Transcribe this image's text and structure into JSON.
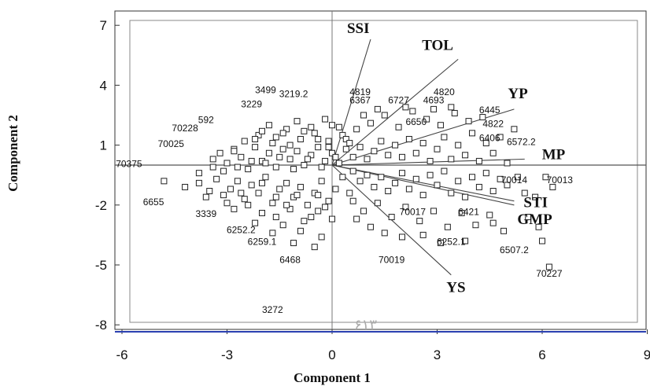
{
  "chart_data": {
    "type": "scatter",
    "title": "",
    "xlabel": "Component 1",
    "ylabel": "Component 2",
    "xlim": [
      -6,
      9.5
    ],
    "ylim": [
      -8.3,
      7
    ],
    "xticks": [
      "-6",
      "-3",
      "0",
      "3",
      "6",
      "9"
    ],
    "yticks": [
      "7",
      "4",
      "1",
      "-2",
      "-5",
      "-8"
    ],
    "grid": false,
    "legend": "none",
    "vectors": [
      {
        "name": "SSI",
        "x": 1.1,
        "y": 6.3
      },
      {
        "name": "TOL",
        "x": 3.6,
        "y": 5.3
      },
      {
        "name": "YP",
        "x": 5.2,
        "y": 2.8
      },
      {
        "name": "MP",
        "x": 5.5,
        "y": 0.3
      },
      {
        "name": "STI",
        "x": 5.2,
        "y": -1.8
      },
      {
        "name": "GMP",
        "x": 5.2,
        "y": -2.0
      },
      {
        "name": "YS",
        "x": 3.4,
        "y": -5.5
      }
    ],
    "labeled_points": [
      {
        "label": "3499",
        "x": -1.9,
        "y": 3.6
      },
      {
        "label": "3219.2",
        "x": -1.1,
        "y": 3.4
      },
      {
        "label": "3229",
        "x": -2.3,
        "y": 2.9
      },
      {
        "label": "592",
        "x": -3.6,
        "y": 2.1
      },
      {
        "label": "70228",
        "x": -4.2,
        "y": 1.7
      },
      {
        "label": "70025",
        "x": -4.6,
        "y": 0.9
      },
      {
        "label": "70375",
        "x": -5.8,
        "y": -0.1
      },
      {
        "label": "6655",
        "x": -5.1,
        "y": -2.0
      },
      {
        "label": "3339",
        "x": -3.6,
        "y": -2.6
      },
      {
        "label": "6252.2",
        "x": -2.6,
        "y": -3.4
      },
      {
        "label": "6259.1",
        "x": -2.0,
        "y": -4.0
      },
      {
        "label": "6468",
        "x": -1.2,
        "y": -4.9
      },
      {
        "label": "3272",
        "x": -1.7,
        "y": -7.4
      },
      {
        "label": "4819",
        "x": 0.8,
        "y": 3.5
      },
      {
        "label": "6367",
        "x": 0.8,
        "y": 3.1
      },
      {
        "label": "6727",
        "x": 1.9,
        "y": 3.1
      },
      {
        "label": "4820",
        "x": 3.2,
        "y": 3.5
      },
      {
        "label": "4693",
        "x": 2.9,
        "y": 3.1
      },
      {
        "label": "6650",
        "x": 2.4,
        "y": 2.0
      },
      {
        "label": "6445",
        "x": 4.5,
        "y": 2.6
      },
      {
        "label": "4822",
        "x": 4.6,
        "y": 1.9
      },
      {
        "label": "6406",
        "x": 4.5,
        "y": 1.2
      },
      {
        "label": "6572.2",
        "x": 5.4,
        "y": 1.0
      },
      {
        "label": "70014",
        "x": 5.2,
        "y": -0.9
      },
      {
        "label": "70013",
        "x": 6.5,
        "y": -0.9
      },
      {
        "label": "70017",
        "x": 2.3,
        "y": -2.5
      },
      {
        "label": "6421",
        "x": 3.9,
        "y": -2.5
      },
      {
        "label": "6252.1",
        "x": 3.4,
        "y": -4.0
      },
      {
        "label": "6507.2",
        "x": 5.2,
        "y": -4.4
      },
      {
        "label": "70019",
        "x": 1.7,
        "y": -4.9
      },
      {
        "label": "70227",
        "x": 6.2,
        "y": -5.6
      }
    ],
    "points": [
      [
        -4.8,
        -0.8
      ],
      [
        -4.2,
        -1.1
      ],
      [
        -3.8,
        -0.9
      ],
      [
        -3.5,
        -1.3
      ],
      [
        -3.3,
        -0.7
      ],
      [
        -3.1,
        -1.5
      ],
      [
        -2.9,
        -1.2
      ],
      [
        -2.7,
        -0.8
      ],
      [
        -2.5,
        -1.7
      ],
      [
        -2.3,
        -1.0
      ],
      [
        -2.1,
        -1.4
      ],
      [
        -1.9,
        -0.6
      ],
      [
        -1.7,
        -1.9
      ],
      [
        -1.5,
        -1.2
      ],
      [
        -1.3,
        -0.9
      ],
      [
        -1.1,
        -1.6
      ],
      [
        -0.9,
        -1.1
      ],
      [
        -0.7,
        -2.0
      ],
      [
        -0.5,
        -1.4
      ],
      [
        -0.3,
        -0.8
      ],
      [
        -0.1,
        -1.8
      ],
      [
        0.1,
        -1.2
      ],
      [
        0.3,
        -0.6
      ],
      [
        -3.4,
        0.3
      ],
      [
        -3.2,
        0.6
      ],
      [
        -3.0,
        0.1
      ],
      [
        -2.8,
        0.8
      ],
      [
        -2.6,
        0.4
      ],
      [
        -2.4,
        -0.2
      ],
      [
        -2.2,
        0.9
      ],
      [
        -2.0,
        0.2
      ],
      [
        -1.8,
        0.6
      ],
      [
        -1.6,
        -0.1
      ],
      [
        -1.4,
        0.8
      ],
      [
        -1.2,
        0.3
      ],
      [
        -1.0,
        0.7
      ],
      [
        -0.8,
        0.0
      ],
      [
        -0.6,
        0.5
      ],
      [
        -0.4,
        0.9
      ],
      [
        -0.2,
        0.2
      ],
      [
        0.0,
        0.6
      ],
      [
        0.2,
        0.1
      ],
      [
        0.4,
        0.8
      ],
      [
        -3.1,
        -0.3
      ],
      [
        -2.7,
        -0.1
      ],
      [
        -2.3,
        0.2
      ],
      [
        -1.9,
        0.1
      ],
      [
        -1.5,
        0.4
      ],
      [
        -1.1,
        -0.2
      ],
      [
        -0.7,
        0.3
      ],
      [
        -0.3,
        -0.1
      ],
      [
        0.1,
        0.4
      ],
      [
        -2.5,
        1.2
      ],
      [
        -2.1,
        1.5
      ],
      [
        -1.7,
        1.1
      ],
      [
        -1.3,
        1.8
      ],
      [
        -0.9,
        1.3
      ],
      [
        -0.5,
        1.6
      ],
      [
        -0.1,
        1.2
      ],
      [
        0.3,
        1.5
      ],
      [
        -1.8,
        2.0
      ],
      [
        -1.4,
        1.6
      ],
      [
        -1.0,
        2.2
      ],
      [
        -0.6,
        1.9
      ],
      [
        -0.2,
        2.3
      ],
      [
        0.2,
        1.9
      ],
      [
        0.4,
        1.3
      ],
      [
        -2.0,
        -2.4
      ],
      [
        -1.6,
        -2.6
      ],
      [
        -1.2,
        -2.2
      ],
      [
        -0.8,
        -2.8
      ],
      [
        -0.4,
        -2.3
      ],
      [
        0.0,
        -2.7
      ],
      [
        -1.4,
        -3.0
      ],
      [
        -0.9,
        -3.3
      ],
      [
        -0.3,
        -3.6
      ],
      [
        -2.2,
        -2.9
      ],
      [
        -1.7,
        -3.4
      ],
      [
        -1.1,
        -3.9
      ],
      [
        -0.5,
        -4.1
      ],
      [
        -2.8,
        -2.2
      ],
      [
        -2.4,
        -2.0
      ],
      [
        0.6,
        -0.3
      ],
      [
        0.8,
        -0.8
      ],
      [
        1.0,
        -0.5
      ],
      [
        1.2,
        -1.1
      ],
      [
        1.4,
        -0.6
      ],
      [
        1.6,
        -1.3
      ],
      [
        1.8,
        -0.9
      ],
      [
        2.0,
        -0.4
      ],
      [
        2.2,
        -1.2
      ],
      [
        2.4,
        -0.7
      ],
      [
        2.6,
        -1.5
      ],
      [
        2.8,
        -0.5
      ],
      [
        3.0,
        -1.0
      ],
      [
        3.2,
        -0.3
      ],
      [
        3.4,
        -1.4
      ],
      [
        3.6,
        -0.8
      ],
      [
        3.8,
        -1.6
      ],
      [
        4.0,
        -0.6
      ],
      [
        4.2,
        -1.1
      ],
      [
        4.4,
        -0.4
      ],
      [
        4.6,
        -1.3
      ],
      [
        4.8,
        -0.7
      ],
      [
        5.0,
        -1.0
      ],
      [
        0.6,
        0.4
      ],
      [
        0.8,
        0.9
      ],
      [
        1.0,
        0.3
      ],
      [
        1.2,
        0.7
      ],
      [
        1.4,
        1.2
      ],
      [
        1.6,
        0.5
      ],
      [
        1.8,
        1.0
      ],
      [
        2.0,
        0.4
      ],
      [
        2.2,
        1.3
      ],
      [
        2.4,
        0.6
      ],
      [
        2.6,
        1.1
      ],
      [
        2.8,
        0.2
      ],
      [
        3.0,
        0.8
      ],
      [
        3.2,
        1.4
      ],
      [
        3.4,
        0.3
      ],
      [
        3.6,
        1.0
      ],
      [
        3.8,
        0.5
      ],
      [
        4.0,
        1.6
      ],
      [
        4.2,
        0.2
      ],
      [
        4.4,
        1.1
      ],
      [
        4.6,
        0.6
      ],
      [
        4.8,
        1.4
      ],
      [
        5.0,
        0.1
      ],
      [
        5.2,
        1.8
      ],
      [
        0.7,
        1.8
      ],
      [
        1.1,
        2.1
      ],
      [
        1.5,
        2.5
      ],
      [
        1.9,
        1.9
      ],
      [
        2.3,
        2.7
      ],
      [
        2.7,
        2.3
      ],
      [
        3.1,
        2.0
      ],
      [
        3.5,
        2.6
      ],
      [
        3.9,
        2.2
      ],
      [
        1.3,
        2.8
      ],
      [
        2.1,
        2.9
      ],
      [
        2.9,
        2.8
      ],
      [
        3.4,
        2.9
      ],
      [
        4.3,
        2.4
      ],
      [
        0.9,
        2.5
      ],
      [
        0.6,
        -1.8
      ],
      [
        0.9,
        -2.3
      ],
      [
        1.3,
        -1.9
      ],
      [
        1.7,
        -2.6
      ],
      [
        2.1,
        -2.1
      ],
      [
        2.5,
        -2.8
      ],
      [
        2.9,
        -2.3
      ],
      [
        3.3,
        -3.1
      ],
      [
        3.7,
        -2.4
      ],
      [
        4.1,
        -3.0
      ],
      [
        4.5,
        -2.5
      ],
      [
        4.9,
        -3.3
      ],
      [
        1.1,
        -3.1
      ],
      [
        1.5,
        -3.4
      ],
      [
        2.0,
        -3.6
      ],
      [
        2.6,
        -3.5
      ],
      [
        3.1,
        -3.9
      ],
      [
        3.8,
        -3.8
      ],
      [
        4.6,
        -2.9
      ],
      [
        5.6,
        -2.6
      ],
      [
        5.9,
        -3.1
      ],
      [
        5.5,
        -1.4
      ],
      [
        6.1,
        -0.6
      ],
      [
        5.3,
        -0.6
      ],
      [
        5.8,
        -1.6
      ],
      [
        6.0,
        -3.8
      ],
      [
        6.2,
        -5.1
      ],
      [
        6.3,
        -1.1
      ],
      [
        0.5,
        -1.4
      ],
      [
        0.7,
        -2.7
      ],
      [
        -0.2,
        -2.1
      ],
      [
        -0.6,
        -2.6
      ],
      [
        -1.3,
        -2.0
      ],
      [
        -0.4,
        -1.5
      ],
      [
        -1.0,
        -1.5
      ],
      [
        -1.6,
        -1.6
      ],
      [
        -2.0,
        -0.9
      ],
      [
        -2.6,
        -1.4
      ],
      [
        -3.0,
        -1.9
      ],
      [
        -3.6,
        -1.6
      ],
      [
        -3.8,
        -0.4
      ],
      [
        -3.4,
        -0.1
      ],
      [
        -0.1,
        0.9
      ],
      [
        0.5,
        1.1
      ],
      [
        -0.4,
        1.3
      ],
      [
        -1.2,
        1.0
      ],
      [
        -1.6,
        1.4
      ],
      [
        -2.2,
        1.3
      ],
      [
        -2.8,
        0.7
      ],
      [
        -2.0,
        1.7
      ],
      [
        -0.8,
        1.7
      ],
      [
        0.0,
        2.0
      ]
    ]
  },
  "watermark_text": "۶۱۳"
}
